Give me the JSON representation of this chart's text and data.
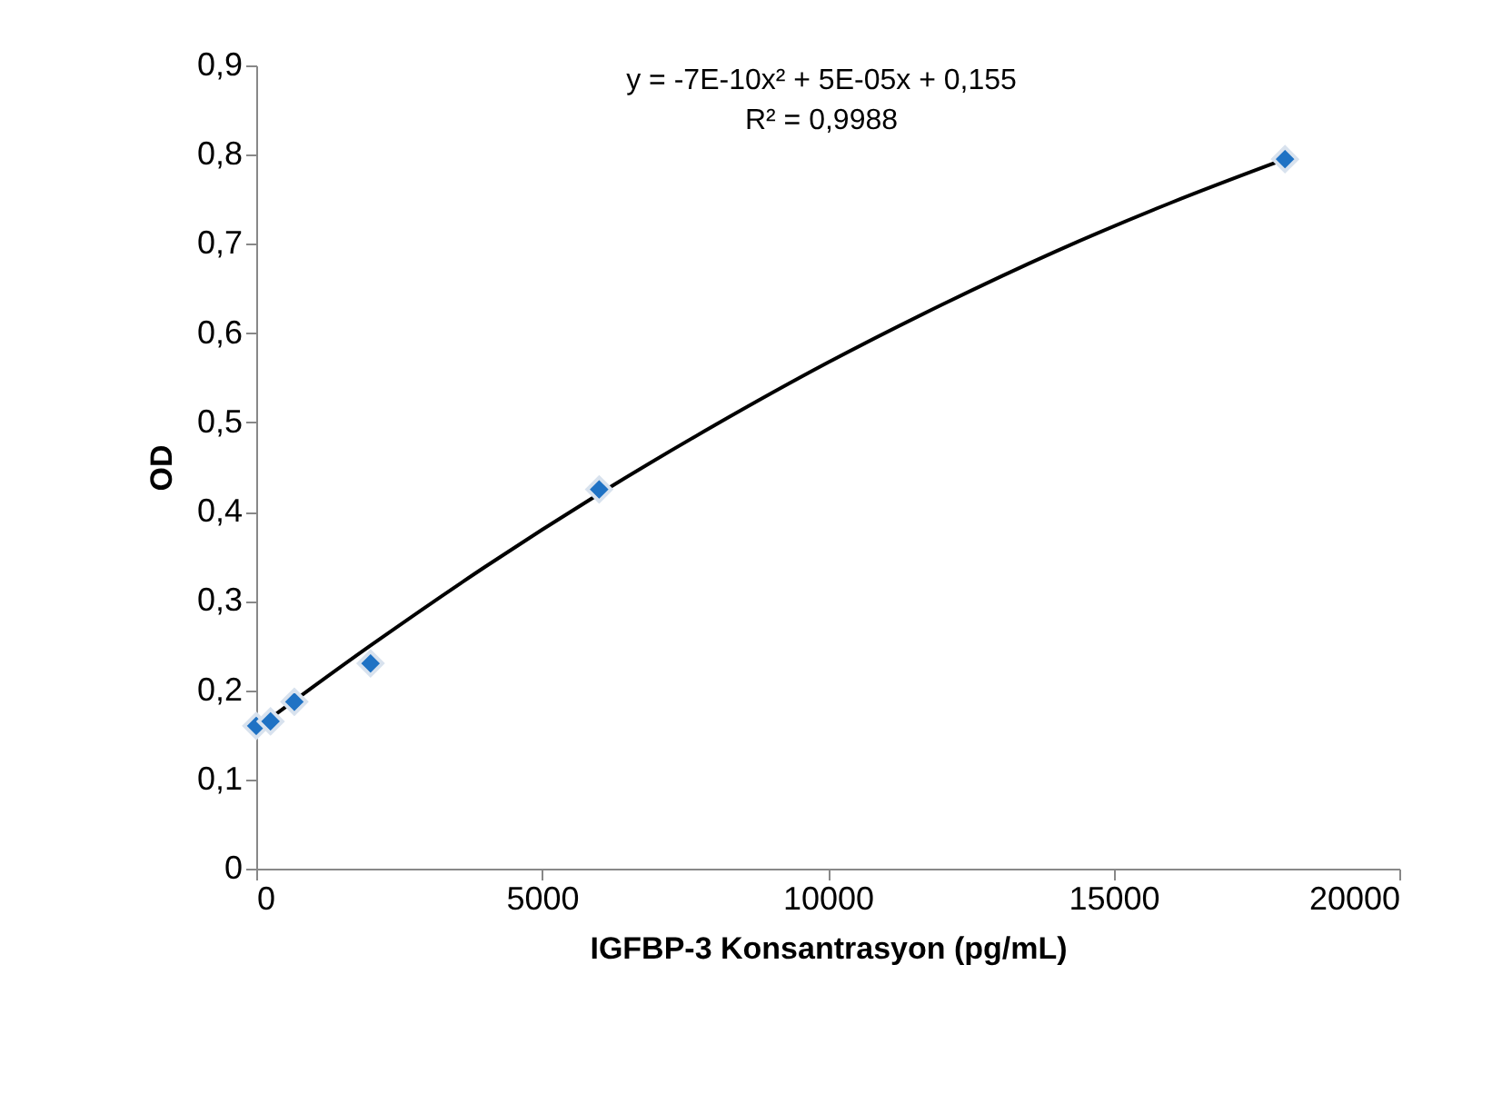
{
  "chart_data": {
    "type": "scatter",
    "xlabel": "IGFBP-3 Konsantrasyon (pg/mL)",
    "ylabel": "OD",
    "annotations": [
      "y = -7E-10x² + 5E-05x + 0,155",
      "R² = 0,9988"
    ],
    "xlim": [
      0,
      20000
    ],
    "xticks": [
      0,
      5000,
      10000,
      15000,
      20000
    ],
    "ylim": [
      0,
      0.9
    ],
    "yticks": [
      0,
      {
        "value": 0.1,
        "label": "0,1"
      },
      {
        "value": 0.2,
        "label": "0,2"
      },
      {
        "value": 0.3,
        "label": "0,3"
      },
      {
        "value": 0.4,
        "label": "0,4"
      },
      {
        "value": 0.5,
        "label": "0,5"
      },
      {
        "value": 0.6,
        "label": "0,6"
      },
      {
        "value": 0.7,
        "label": "0,7"
      },
      {
        "value": 0.8,
        "label": "0,8"
      },
      {
        "value": 0.9,
        "label": "0,9"
      }
    ],
    "grid": false,
    "marker": "diamond",
    "series": [
      {
        "color": "#1f72c4",
        "x": [
          0,
          250,
          667,
          2000,
          6000,
          18000
        ],
        "values": [
          0.16,
          0.165,
          0.187,
          0.23,
          0.425,
          0.795
        ]
      },
      {
        "type": "line",
        "marker": "none",
        "color": "#000000",
        "line_style": "solid",
        "x": [
          0,
          2000,
          4000,
          6000,
          8000,
          10000,
          12000,
          14000,
          16000,
          18000
        ],
        "values": [
          0.157,
          0.25,
          0.338,
          0.42,
          0.496,
          0.567,
          0.632,
          0.692,
          0.746,
          0.795
        ]
      }
    ]
  }
}
